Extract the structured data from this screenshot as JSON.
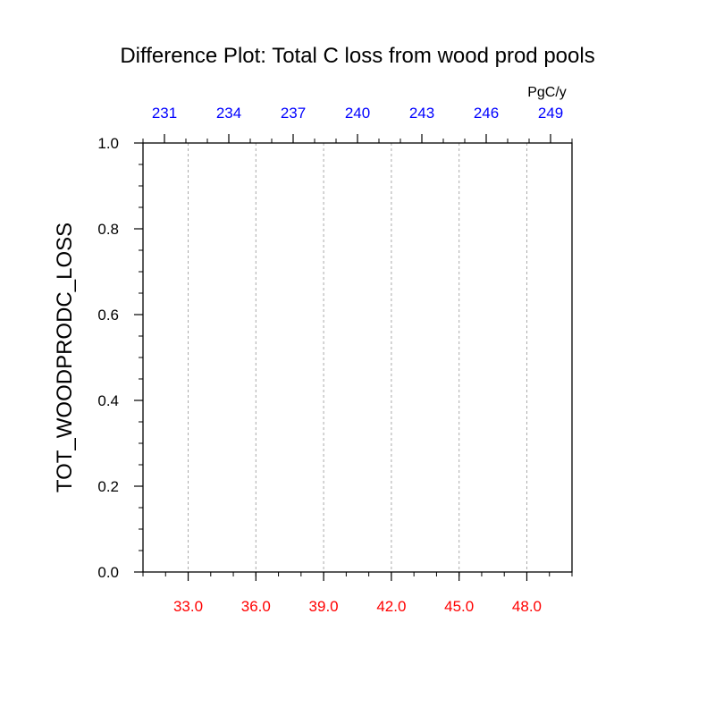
{
  "chart_data": {
    "type": "line",
    "title": "Difference Plot: Total C loss from wood prod pools",
    "ylabel": "TOT_WOODPRODC_LOSS",
    "units_label": "PgC/y",
    "ylim": [
      0,
      1
    ],
    "y_ticks": [
      "0.0",
      "0.2",
      "0.4",
      "0.6",
      "0.8",
      "1.0"
    ],
    "y_tick_values": [
      0,
      0.2,
      0.4,
      0.6,
      0.8,
      1.0
    ],
    "y_minor_step": 0.05,
    "bottom_axis": {
      "xlim": [
        31,
        50
      ],
      "ticks": [
        "33.0",
        "36.0",
        "39.0",
        "42.0",
        "45.0",
        "48.0"
      ],
      "tick_values": [
        33,
        36,
        39,
        42,
        45,
        48
      ],
      "minor_step": 1,
      "color": "#ff0000"
    },
    "top_axis": {
      "xlim": [
        230,
        250
      ],
      "ticks": [
        "231",
        "234",
        "237",
        "240",
        "243",
        "246",
        "249"
      ],
      "tick_values": [
        231,
        234,
        237,
        240,
        243,
        246,
        249
      ],
      "minor_step": 1,
      "color": "#0000ff"
    },
    "grid": "vertical-dashed",
    "series": []
  }
}
